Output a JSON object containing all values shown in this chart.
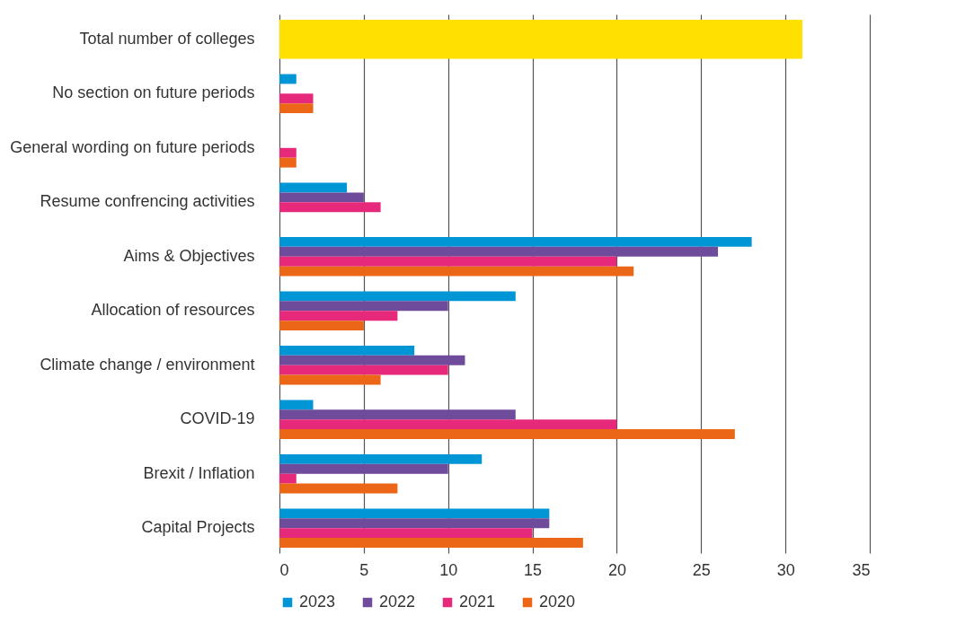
{
  "chart_data": {
    "type": "bar",
    "orientation": "horizontal",
    "categories": [
      "Total number of colleges",
      "No section on future periods",
      "General wording on future periods",
      "Resume confrencing activities",
      "Aims & Objectives",
      "Allocation of resources",
      "Climate change / environment",
      "COVID-19",
      "Brexit / Inflation",
      "Capital Projects"
    ],
    "series": [
      {
        "name": "2023",
        "color": "#0096d6",
        "values": [
          null,
          1,
          null,
          4,
          28,
          14,
          8,
          2,
          12,
          16
        ]
      },
      {
        "name": "2022",
        "color": "#6f4c9b",
        "values": [
          null,
          null,
          null,
          5,
          26,
          10,
          11,
          14,
          10,
          16
        ]
      },
      {
        "name": "2021",
        "color": "#e6297b",
        "values": [
          null,
          2,
          1,
          6,
          20,
          7,
          10,
          20,
          1,
          15
        ]
      },
      {
        "name": "2020",
        "color": "#ec6617",
        "values": [
          null,
          2,
          1,
          null,
          21,
          5,
          6,
          27,
          7,
          18
        ]
      },
      {
        "color": "#ffe000",
        "values": [
          31,
          null,
          null,
          null,
          null,
          null,
          null,
          null,
          null,
          null
        ]
      }
    ],
    "xlim": [
      0,
      35
    ],
    "xticks": [
      0,
      5,
      10,
      15,
      20,
      25,
      30,
      35
    ],
    "grid": "x",
    "legend": "bottom"
  }
}
